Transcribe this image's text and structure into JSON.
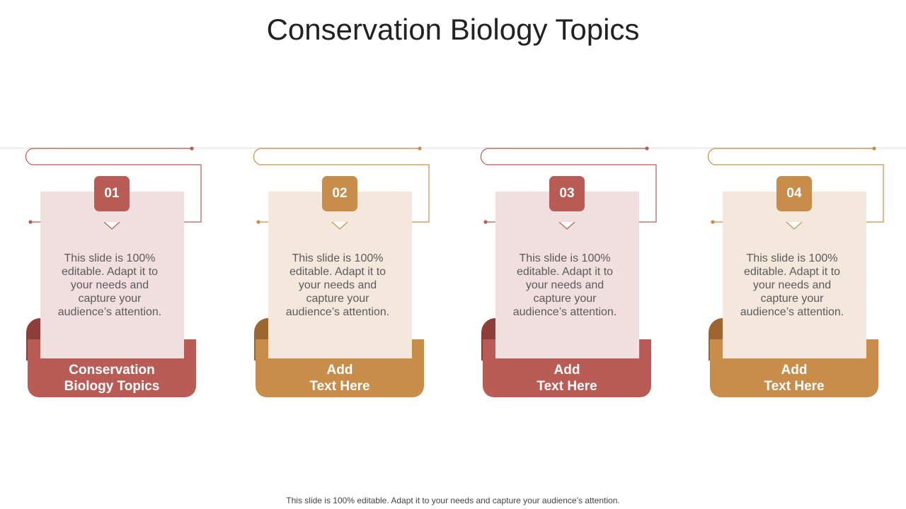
{
  "title": "Conservation Biology Topics",
  "footer": "This slide is 100% editable. Adapt it to your needs and capture your audience’s attention.",
  "cards": [
    {
      "number": "01",
      "label": "Conservation\nBiology Topics",
      "body": "This slide is 100% editable. Adapt it to your needs and capture your audience’s attention.",
      "accent": "#b85c55",
      "accent_dark": "#8f3f3a",
      "paper": "#f0dfde"
    },
    {
      "number": "02",
      "label": "Add\nText Here",
      "body": "This slide is 100% editable. Adapt it to your needs and capture your audience’s attention.",
      "accent": "#c98d4a",
      "accent_dark": "#9b672f",
      "paper": "#f4e8dc"
    },
    {
      "number": "03",
      "label": "Add\nText Here",
      "body": "This slide is 100% editable. Adapt it to your needs and capture your audience’s attention.",
      "accent": "#b85c55",
      "accent_dark": "#8f3f3a",
      "paper": "#f0dfde"
    },
    {
      "number": "04",
      "label": "Add\nText Here",
      "body": "This slide is 100% editable. Adapt it to your needs and capture your audience’s attention.",
      "accent": "#c98d4a",
      "accent_dark": "#9b672f",
      "paper": "#f4e8dc"
    }
  ]
}
